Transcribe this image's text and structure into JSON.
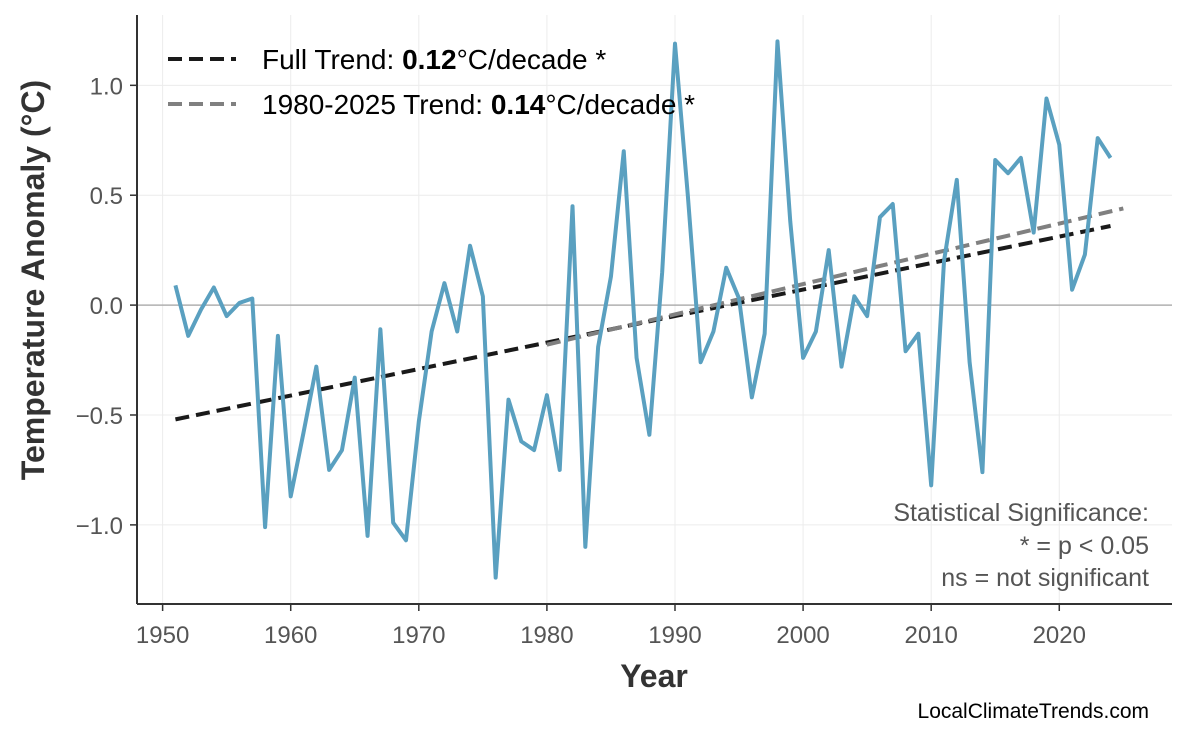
{
  "chart_data": {
    "type": "line",
    "title": "",
    "xlabel": "Year",
    "ylabel": "Temperature Anomaly (°C)",
    "xlim": [
      1948,
      2028.8
    ],
    "ylim": [
      -1.36,
      1.32
    ],
    "xticks": [
      1950,
      1960,
      1970,
      1980,
      1990,
      2000,
      2010,
      2020
    ],
    "yticks": [
      -1.0,
      -0.5,
      0.0,
      0.5,
      1.0
    ],
    "ytick_labels": [
      "−1.0",
      "−0.5",
      "0.0",
      "0.5",
      "1.0"
    ],
    "grid": true,
    "zero_line": true,
    "legend_placement": "top-left",
    "colors": {
      "series": "#5aa0c0",
      "full_trend": "#1a1a1a",
      "recent_trend": "#808080"
    },
    "series": [
      {
        "x": [
          1951,
          1952,
          1953,
          1954,
          1955,
          1956,
          1957,
          1958,
          1959,
          1960,
          1961,
          1962,
          1963,
          1964,
          1965,
          1966,
          1967,
          1968,
          1969,
          1970,
          1971,
          1972,
          1973,
          1974,
          1975,
          1976,
          1977,
          1978,
          1979,
          1980,
          1981,
          1982,
          1983,
          1984,
          1985,
          1986,
          1987,
          1988,
          1989,
          1990,
          1991,
          1992,
          1993,
          1994,
          1995,
          1996,
          1997,
          1998,
          1999,
          2000,
          2001,
          2002,
          2003,
          2004,
          2005,
          2006,
          2007,
          2008,
          2009,
          2010,
          2011,
          2012,
          2013,
          2014,
          2015,
          2016,
          2017,
          2018,
          2019,
          2020,
          2021,
          2022,
          2023,
          2024
        ],
        "y": [
          0.09,
          -0.14,
          -0.02,
          0.08,
          -0.05,
          0.01,
          0.03,
          -1.01,
          -0.14,
          -0.87,
          -0.58,
          -0.28,
          -0.75,
          -0.66,
          -0.33,
          -1.05,
          -0.11,
          -0.99,
          -1.07,
          -0.53,
          -0.12,
          0.1,
          -0.12,
          0.27,
          0.04,
          -1.24,
          -0.43,
          -0.62,
          -0.66,
          -0.41,
          -0.75,
          0.45,
          -1.1,
          -0.19,
          0.13,
          0.7,
          -0.24,
          -0.59,
          0.15,
          1.19,
          0.5,
          -0.26,
          -0.12,
          0.17,
          0.03,
          -0.42,
          -0.13,
          1.2,
          0.38,
          -0.24,
          -0.12,
          0.25,
          -0.28,
          0.04,
          -0.05,
          0.4,
          0.46,
          -0.21,
          -0.13,
          -0.82,
          0.2,
          0.57,
          -0.26,
          -0.76,
          0.66,
          0.6,
          0.67,
          0.33,
          0.94,
          0.73,
          0.07,
          0.23,
          0.76,
          0.67
        ]
      }
    ],
    "trends": [
      {
        "name_prefix": "Full Trend: ",
        "value": "0.12",
        "unit": "°C/decade *",
        "x": [
          1951,
          2024
        ],
        "y": [
          -0.52,
          0.36
        ]
      },
      {
        "name_prefix": "1980-2025 Trend: ",
        "value": "0.14",
        "unit": "°C/decade *",
        "x": [
          1980,
          2025
        ],
        "y": [
          -0.18,
          0.44
        ]
      }
    ],
    "annotations": {
      "significance_title": "Statistical Significance:",
      "significance_star": "* = p < 0.05",
      "significance_ns": "ns = not significant"
    }
  },
  "watermark": "LocalClimateTrends.com"
}
